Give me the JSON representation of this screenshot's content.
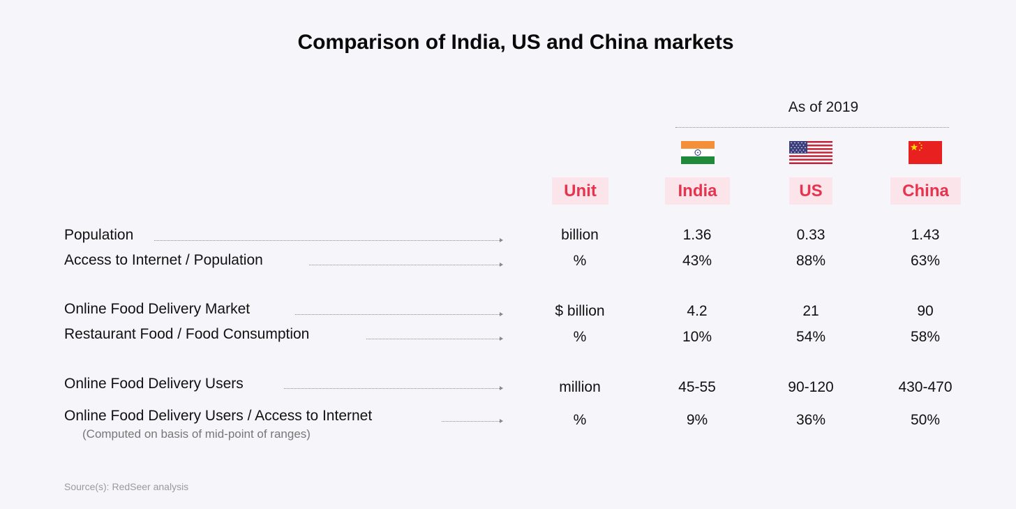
{
  "title": "Comparison of India, US and China markets",
  "as_of": "As of 2019",
  "headers": {
    "unit": "Unit",
    "india": "India",
    "us": "US",
    "china": "China"
  },
  "rows": [
    {
      "label": "Population",
      "unit": "billion",
      "india": "1.36",
      "us": "0.33",
      "china": "1.43"
    },
    {
      "label": "Access to Internet / Population",
      "unit": "%",
      "india": "43%",
      "us": "88%",
      "china": "63%"
    },
    {
      "label": "Online Food Delivery Market",
      "unit": "$ billion",
      "india": "4.2",
      "us": "21",
      "china": "90"
    },
    {
      "label": "Restaurant Food / Food Consumption",
      "unit": "%",
      "india": "10%",
      "us": "54%",
      "china": "58%"
    },
    {
      "label": "Online Food Delivery Users",
      "unit": "million",
      "india": "45-55",
      "us": "90-120",
      "china": "430-470"
    },
    {
      "label": "Online Food Delivery Users / Access to Internet",
      "unit": "%",
      "india": "9%",
      "us": "36%",
      "china": "50%"
    }
  ],
  "note": "(Computed on basis of mid-point of ranges)",
  "source": "Source(s): RedSeer analysis",
  "colors": {
    "accent": "#e8334f",
    "header_bg": "#fbe4ea",
    "background": "#f6f5f9"
  },
  "icons": {
    "india": "india-flag-icon",
    "us": "us-flag-icon",
    "china": "china-flag-icon"
  }
}
